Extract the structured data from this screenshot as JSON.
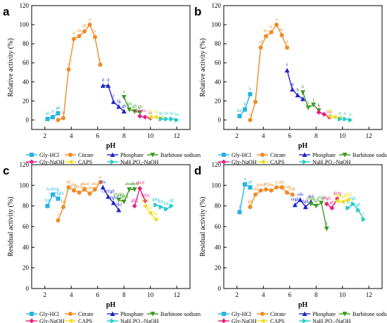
{
  "series_styles": [
    {
      "name": "Gly-HCl",
      "color": "#22b3e6",
      "marker": "square"
    },
    {
      "name": "Citrate",
      "color": "#f08a24",
      "marker": "circle"
    },
    {
      "name": "Phosphate",
      "color": "#1f24c8",
      "marker": "triangle"
    },
    {
      "name": "Barbitone sodium",
      "color": "#3c9a1f",
      "marker": "triangle-down"
    },
    {
      "name": "Gly-NaOH",
      "color": "#e62083",
      "marker": "diamond"
    },
    {
      "name": "CAPS",
      "color": "#f0dd22",
      "marker": "triangle-left"
    },
    {
      "name": "NaH₂PO₄-NaOH",
      "color": "#22c9c9",
      "marker": "triangle-right"
    }
  ],
  "chart_data": [
    {
      "panel": "a",
      "type": "line",
      "xlabel": "pH",
      "ylabel": "Relative activity (%)",
      "xlim": [
        1,
        13
      ],
      "ylim": [
        -10,
        120
      ],
      "xticks": [
        2,
        4,
        6,
        8,
        10,
        12
      ],
      "yticks": [
        0,
        20,
        40,
        60,
        80,
        100,
        120
      ],
      "series": [
        {
          "name": "Gly-HCl",
          "points": [
            {
              "x": 2.2,
              "y": 1,
              "l": "hi"
            },
            {
              "x": 2.6,
              "y": 3,
              "l": "h"
            },
            {
              "x": 3.0,
              "y": 7,
              "l": "gh"
            }
          ]
        },
        {
          "name": "Citrate",
          "points": [
            {
              "x": 3.0,
              "y": 0,
              "l": "i"
            },
            {
              "x": 3.4,
              "y": 2,
              "l": "hi"
            },
            {
              "x": 3.8,
              "y": 53,
              "l": "c"
            },
            {
              "x": 4.2,
              "y": 85,
              "l": "b"
            },
            {
              "x": 4.6,
              "y": 88,
              "l": "ab"
            },
            {
              "x": 5.0,
              "y": 93,
              "l": "ab"
            },
            {
              "x": 5.4,
              "y": 100,
              "l": "a"
            },
            {
              "x": 5.8,
              "y": 87,
              "l": "b"
            },
            {
              "x": 6.2,
              "y": 58,
              "l": "c"
            }
          ]
        },
        {
          "name": "Phosphate",
          "points": [
            {
              "x": 6.4,
              "y": 36,
              "l": "d"
            },
            {
              "x": 6.8,
              "y": 36,
              "l": "d"
            },
            {
              "x": 7.2,
              "y": 19,
              "l": "f"
            },
            {
              "x": 7.6,
              "y": 14,
              "l": "fg"
            },
            {
              "x": 8.0,
              "y": 9,
              "l": "gh"
            }
          ]
        },
        {
          "name": "Barbitone sodium",
          "points": [
            {
              "x": 8.0,
              "y": 24,
              "l": "e"
            },
            {
              "x": 8.4,
              "y": 11,
              "l": "gh"
            },
            {
              "x": 8.8,
              "y": 9,
              "l": "gh"
            },
            {
              "x": 9.2,
              "y": 8,
              "l": "gh"
            }
          ]
        },
        {
          "name": "Gly-NaOH",
          "points": [
            {
              "x": 9.2,
              "y": 4,
              "l": "ghighi"
            },
            {
              "x": 9.6,
              "y": 3,
              "l": ""
            },
            {
              "x": 10.0,
              "y": 2,
              "l": "hi"
            }
          ]
        },
        {
          "name": "CAPS",
          "points": [
            {
              "x": 10.0,
              "y": 3,
              "l": "hi"
            },
            {
              "x": 10.4,
              "y": 3,
              "l": "hi"
            },
            {
              "x": 10.8,
              "y": 2,
              "l": ""
            }
          ]
        },
        {
          "name": "NaH₂PO₄-NaOH",
          "points": [
            {
              "x": 10.8,
              "y": 1,
              "l": "hi"
            },
            {
              "x": 11.2,
              "y": 1,
              "l": "hi"
            },
            {
              "x": 11.6,
              "y": 1,
              "l": "hi"
            },
            {
              "x": 12.0,
              "y": 0,
              "l": "hi"
            }
          ]
        }
      ]
    },
    {
      "panel": "b",
      "type": "line",
      "xlabel": "pH",
      "ylabel": "Relative activity (%)",
      "xlim": [
        1,
        13
      ],
      "ylim": [
        -10,
        120
      ],
      "xticks": [
        2,
        4,
        6,
        8,
        10,
        12
      ],
      "yticks": [
        0,
        20,
        40,
        60,
        80,
        100,
        120
      ],
      "series": [
        {
          "name": "Gly-HCl",
          "points": [
            {
              "x": 2.2,
              "y": 4,
              "l": "lm"
            },
            {
              "x": 2.6,
              "y": 11,
              "l": "k"
            },
            {
              "x": 3.0,
              "y": 27,
              "l": "h"
            }
          ]
        },
        {
          "name": "Citrate",
          "points": [
            {
              "x": 3.0,
              "y": 0,
              "l": "n"
            },
            {
              "x": 3.4,
              "y": 19,
              "l": "i"
            },
            {
              "x": 3.8,
              "y": 76,
              "l": "d"
            },
            {
              "x": 4.2,
              "y": 88,
              "l": "bc"
            },
            {
              "x": 4.6,
              "y": 92,
              "l": "b"
            },
            {
              "x": 5.0,
              "y": 100,
              "l": "a"
            },
            {
              "x": 5.4,
              "y": 89,
              "l": "bc"
            },
            {
              "x": 5.8,
              "y": 76,
              "l": "d"
            }
          ]
        },
        {
          "name": "Phosphate",
          "points": [
            {
              "x": 5.8,
              "y": 52,
              "l": "f"
            },
            {
              "x": 6.2,
              "y": 32,
              "l": "g"
            },
            {
              "x": 6.6,
              "y": 26,
              "l": "h"
            },
            {
              "x": 7.0,
              "y": 22,
              "l": "h"
            }
          ]
        },
        {
          "name": "Barbitone sodium",
          "points": [
            {
              "x": 7.0,
              "y": 29,
              "l": "h"
            },
            {
              "x": 7.4,
              "y": 13,
              "l": "j"
            },
            {
              "x": 7.8,
              "y": 16,
              "l": "j"
            },
            {
              "x": 8.2,
              "y": 10,
              "l": "k"
            }
          ]
        },
        {
          "name": "Gly-NaOH",
          "points": [
            {
              "x": 8.2,
              "y": 8,
              "l": "l"
            },
            {
              "x": 8.6,
              "y": 6,
              "l": ""
            },
            {
              "x": 9.0,
              "y": 3,
              "l": "mn"
            }
          ]
        },
        {
          "name": "CAPS",
          "points": [
            {
              "x": 9.0,
              "y": 4,
              "l": "mn"
            },
            {
              "x": 9.4,
              "y": 3,
              "l": ""
            },
            {
              "x": 9.8,
              "y": 2,
              "l": "n"
            }
          ]
        },
        {
          "name": "NaH₂PO₄-NaOH",
          "points": [
            {
              "x": 9.8,
              "y": 1,
              "l": "n"
            },
            {
              "x": 10.2,
              "y": 1,
              "l": "n"
            },
            {
              "x": 10.6,
              "y": 0,
              "l": "n"
            }
          ]
        }
      ]
    },
    {
      "panel": "c",
      "type": "line",
      "xlabel": "pH",
      "ylabel": "Residual activity (%)",
      "xlim": [
        1,
        13
      ],
      "ylim": [
        0,
        120
      ],
      "xticks": [
        2,
        4,
        6,
        8,
        10,
        12
      ],
      "yticks": [
        0,
        20,
        40,
        60,
        80,
        100,
        120
      ],
      "series": [
        {
          "name": "Gly-HCl",
          "points": [
            {
              "x": 2.2,
              "y": 80,
              "l": "hij"
            },
            {
              "x": 2.6,
              "y": 91,
              "l": "bcdefg"
            },
            {
              "x": 3.0,
              "y": 87,
              "l": "defghi"
            }
          ]
        },
        {
          "name": "Citrate",
          "points": [
            {
              "x": 3.0,
              "y": 66,
              "l": "l"
            },
            {
              "x": 3.4,
              "y": 79,
              "l": "hij"
            },
            {
              "x": 3.8,
              "y": 98,
              "l": "ab"
            },
            {
              "x": 4.2,
              "y": 95,
              "l": "abc"
            },
            {
              "x": 4.6,
              "y": 93,
              "l": "abcde"
            },
            {
              "x": 5.0,
              "y": 96,
              "l": "abcd"
            },
            {
              "x": 5.4,
              "y": 92,
              "l": "bcdef"
            },
            {
              "x": 5.8,
              "y": 96,
              "l": "abc"
            },
            {
              "x": 6.2,
              "y": 103,
              "l": "a"
            }
          ]
        },
        {
          "name": "Phosphate",
          "points": [
            {
              "x": 6.4,
              "y": 98,
              "l": "abc"
            },
            {
              "x": 6.8,
              "y": 89,
              "l": "cdefgh"
            },
            {
              "x": 7.2,
              "y": 83,
              "l": "efghij"
            },
            {
              "x": 7.6,
              "y": 76,
              "l": "ijkl"
            }
          ]
        },
        {
          "name": "Barbitone sodium",
          "points": [
            {
              "x": 7.6,
              "y": 86,
              "l": "efghij"
            },
            {
              "x": 8.0,
              "y": 84,
              "l": "fghij"
            },
            {
              "x": 8.4,
              "y": 96,
              "l": "abcd"
            },
            {
              "x": 8.8,
              "y": 96,
              "l": "abcd"
            }
          ]
        },
        {
          "name": "Gly-NaOH",
          "points": [
            {
              "x": 8.8,
              "y": 80,
              "l": "ghij"
            },
            {
              "x": 9.2,
              "y": 97,
              "l": "abcd"
            },
            {
              "x": 9.6,
              "y": 85,
              "l": "fghij"
            }
          ]
        },
        {
          "name": "CAPS",
          "points": [
            {
              "x": 9.6,
              "y": 80,
              "l": "fghij"
            },
            {
              "x": 10.0,
              "y": 73,
              "l": "jk"
            },
            {
              "x": 10.4,
              "y": 67,
              "l": "kl"
            }
          ]
        },
        {
          "name": "NaH₂PO₄-NaOH",
          "points": [
            {
              "x": 10.4,
              "y": 81,
              "l": "ghij"
            },
            {
              "x": 10.8,
              "y": 79,
              "l": "hij"
            },
            {
              "x": 11.2,
              "y": 77,
              "l": "hij"
            },
            {
              "x": 11.6,
              "y": 80,
              "l": "ijk"
            }
          ]
        }
      ]
    },
    {
      "panel": "d",
      "type": "line",
      "xlabel": "pH",
      "ylabel": "Residual activity (%)",
      "xlim": [
        1,
        13
      ],
      "ylim": [
        0,
        120
      ],
      "xticks": [
        2,
        4,
        6,
        8,
        10,
        12
      ],
      "yticks": [
        0,
        20,
        40,
        60,
        80,
        100,
        120
      ],
      "series": [
        {
          "name": "Gly-HCl",
          "points": [
            {
              "x": 2.2,
              "y": 74,
              "l": "i"
            },
            {
              "x": 2.6,
              "y": 101,
              "l": "a"
            },
            {
              "x": 3.0,
              "y": 98,
              "l": "ab"
            }
          ]
        },
        {
          "name": "Citrate",
          "points": [
            {
              "x": 3.0,
              "y": 79,
              "l": "gh"
            },
            {
              "x": 3.4,
              "y": 91,
              "l": "cde"
            },
            {
              "x": 3.8,
              "y": 95,
              "l": "abcd"
            },
            {
              "x": 4.2,
              "y": 96,
              "l": "ab"
            },
            {
              "x": 4.6,
              "y": 95,
              "l": "abc"
            },
            {
              "x": 5.0,
              "y": 98,
              "l": "a"
            },
            {
              "x": 5.4,
              "y": 98,
              "l": "abc"
            },
            {
              "x": 5.8,
              "y": 93,
              "l": "bcde"
            },
            {
              "x": 6.2,
              "y": 91,
              "l": "cde"
            }
          ]
        },
        {
          "name": "Phosphate",
          "points": [
            {
              "x": 6.4,
              "y": 81,
              "l": "efgh"
            },
            {
              "x": 6.8,
              "y": 86,
              "l": "cde"
            },
            {
              "x": 7.2,
              "y": 79,
              "l": "fgh"
            },
            {
              "x": 7.6,
              "y": 84,
              "l": "def"
            }
          ]
        },
        {
          "name": "Barbitone sodium",
          "points": [
            {
              "x": 7.6,
              "y": 82,
              "l": "efgh"
            },
            {
              "x": 8.0,
              "y": 80,
              "l": "fgh"
            },
            {
              "x": 8.4,
              "y": 83,
              "l": "efgh"
            },
            {
              "x": 8.8,
              "y": 58,
              "l": "j"
            }
          ]
        },
        {
          "name": "Gly-NaOH",
          "points": [
            {
              "x": 8.8,
              "y": 82,
              "l": "efgh"
            },
            {
              "x": 9.2,
              "y": 78,
              "l": "gh"
            },
            {
              "x": 9.6,
              "y": 87,
              "l": "defg"
            }
          ]
        },
        {
          "name": "CAPS",
          "points": [
            {
              "x": 9.6,
              "y": 85,
              "l": "efgh"
            },
            {
              "x": 10.0,
              "y": 84,
              "l": "efgh"
            },
            {
              "x": 10.4,
              "y": 86,
              "l": "efgh"
            }
          ]
        },
        {
          "name": "NaH₂PO₄-NaOH",
          "points": [
            {
              "x": 10.4,
              "y": 78,
              "l": "h"
            },
            {
              "x": 10.8,
              "y": 82,
              "l": "fgh"
            },
            {
              "x": 11.2,
              "y": 76,
              "l": "gh"
            },
            {
              "x": 11.6,
              "y": 67,
              "l": "i"
            }
          ]
        }
      ]
    }
  ]
}
